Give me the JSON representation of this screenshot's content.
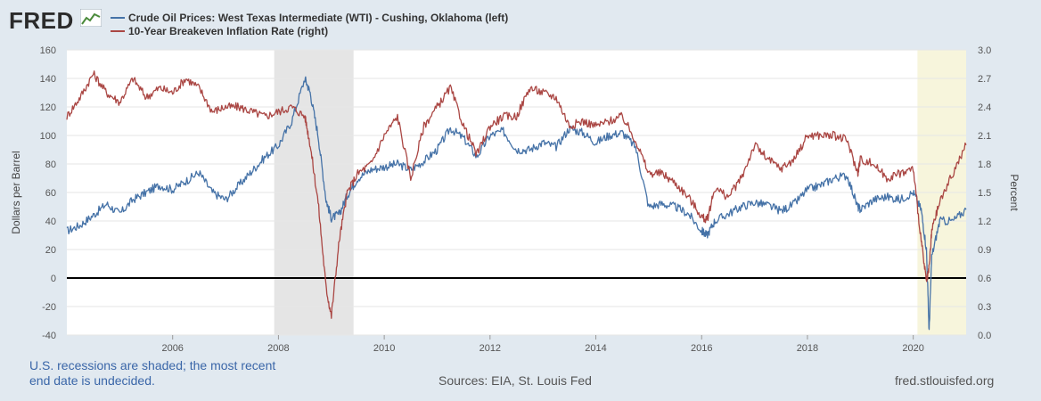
{
  "brand": {
    "logo_text": "FRED",
    "logo_icon": "fred-chart-icon"
  },
  "legend": [
    {
      "label": "Crude Oil Prices: West Texas Intermediate (WTI) - Cushing, Oklahoma (left)",
      "color": "#4572a7"
    },
    {
      "label": "10-Year Breakeven Inflation Rate (right)",
      "color": "#aa4643"
    }
  ],
  "footer": {
    "note": "U.S. recessions are shaded; the most recent end date is undecided.",
    "sources": "Sources: EIA, St. Louis Fed",
    "url": "fred.stlouisfed.org"
  },
  "chart_data": {
    "type": "line",
    "left_axis": {
      "label": "Dollars per Barrel",
      "range": [
        -40,
        160
      ],
      "ticks": [
        -40,
        -20,
        0,
        20,
        40,
        60,
        80,
        100,
        120,
        140,
        160
      ]
    },
    "right_axis": {
      "label": "Percent",
      "range": [
        0.0,
        3.0
      ],
      "ticks": [
        "0.0",
        "0.3",
        "0.6",
        "0.9",
        "1.2",
        "1.5",
        "1.8",
        "2.1",
        "2.4",
        "2.7",
        "3.0"
      ]
    },
    "x_axis": {
      "range": [
        2004.0,
        2021.0
      ],
      "ticks": [
        "2006",
        "2008",
        "2010",
        "2012",
        "2014",
        "2016",
        "2018",
        "2020"
      ]
    },
    "recessions": [
      {
        "start": 2007.92,
        "end": 2009.42
      },
      {
        "start": 2020.08,
        "end": 2021.0
      }
    ],
    "series": [
      {
        "name": "Crude Oil Prices: West Texas Intermediate (WTI) - Cushing, Oklahoma (left)",
        "axis": "left",
        "color": "#4572a7",
        "x": [
          2004.0,
          2004.25,
          2004.5,
          2004.75,
          2005.0,
          2005.25,
          2005.5,
          2005.75,
          2006.0,
          2006.25,
          2006.5,
          2006.75,
          2007.0,
          2007.25,
          2007.5,
          2007.75,
          2008.0,
          2008.25,
          2008.5,
          2008.6,
          2008.75,
          2008.9,
          2009.0,
          2009.15,
          2009.3,
          2009.5,
          2009.75,
          2010.0,
          2010.25,
          2010.5,
          2010.75,
          2011.0,
          2011.25,
          2011.5,
          2011.75,
          2012.0,
          2012.25,
          2012.5,
          2012.75,
          2013.0,
          2013.25,
          2013.5,
          2013.75,
          2014.0,
          2014.25,
          2014.5,
          2014.75,
          2015.0,
          2015.25,
          2015.5,
          2015.75,
          2016.0,
          2016.1,
          2016.25,
          2016.5,
          2016.75,
          2017.0,
          2017.25,
          2017.5,
          2017.75,
          2018.0,
          2018.25,
          2018.5,
          2018.75,
          2018.95,
          2019.0,
          2019.25,
          2019.5,
          2019.75,
          2020.0,
          2020.15,
          2020.25,
          2020.3,
          2020.35,
          2020.5,
          2020.75,
          2021.0
        ],
        "values": [
          33,
          37,
          44,
          52,
          45,
          55,
          60,
          65,
          62,
          68,
          74,
          60,
          55,
          65,
          75,
          85,
          93,
          110,
          140,
          130,
          100,
          55,
          42,
          45,
          58,
          70,
          76,
          78,
          80,
          76,
          82,
          90,
          105,
          98,
          85,
          100,
          103,
          90,
          90,
          95,
          92,
          105,
          102,
          95,
          100,
          102,
          92,
          50,
          52,
          50,
          45,
          33,
          30,
          40,
          45,
          50,
          53,
          51,
          47,
          52,
          62,
          65,
          70,
          72,
          50,
          48,
          55,
          57,
          55,
          60,
          48,
          20,
          -37,
          15,
          40,
          40,
          48
        ]
      },
      {
        "name": "10-Year Breakeven Inflation Rate (right)",
        "axis": "right",
        "color": "#aa4643",
        "x": [
          2004.0,
          2004.25,
          2004.5,
          2004.75,
          2005.0,
          2005.25,
          2005.5,
          2005.75,
          2006.0,
          2006.25,
          2006.5,
          2006.75,
          2007.0,
          2007.25,
          2007.5,
          2007.75,
          2008.0,
          2008.25,
          2008.5,
          2008.6,
          2008.75,
          2008.9,
          2009.0,
          2009.15,
          2009.3,
          2009.5,
          2009.75,
          2010.0,
          2010.25,
          2010.5,
          2010.75,
          2011.0,
          2011.25,
          2011.5,
          2011.75,
          2012.0,
          2012.25,
          2012.5,
          2012.75,
          2013.0,
          2013.25,
          2013.5,
          2013.75,
          2014.0,
          2014.25,
          2014.5,
          2014.75,
          2015.0,
          2015.25,
          2015.5,
          2015.75,
          2016.0,
          2016.1,
          2016.25,
          2016.5,
          2016.75,
          2017.0,
          2017.25,
          2017.5,
          2017.75,
          2018.0,
          2018.25,
          2018.5,
          2018.75,
          2018.95,
          2019.0,
          2019.25,
          2019.5,
          2019.75,
          2020.0,
          2020.15,
          2020.25,
          2020.3,
          2020.35,
          2020.5,
          2020.75,
          2021.0
        ],
        "values": [
          2.3,
          2.5,
          2.75,
          2.55,
          2.45,
          2.7,
          2.5,
          2.6,
          2.55,
          2.7,
          2.6,
          2.35,
          2.4,
          2.4,
          2.35,
          2.3,
          2.35,
          2.4,
          2.3,
          2.0,
          1.4,
          0.5,
          0.2,
          1.0,
          1.5,
          1.7,
          1.8,
          2.1,
          2.3,
          1.65,
          2.2,
          2.4,
          2.6,
          2.2,
          1.9,
          2.2,
          2.3,
          2.3,
          2.6,
          2.55,
          2.5,
          2.2,
          2.25,
          2.2,
          2.25,
          2.3,
          2.05,
          1.7,
          1.7,
          1.6,
          1.45,
          1.25,
          1.2,
          1.55,
          1.45,
          1.65,
          2.0,
          1.85,
          1.75,
          1.85,
          2.1,
          2.1,
          2.1,
          2.05,
          1.7,
          1.85,
          1.8,
          1.65,
          1.7,
          1.75,
          1.0,
          0.55,
          0.7,
          1.1,
          1.4,
          1.7,
          2.0
        ]
      }
    ]
  }
}
